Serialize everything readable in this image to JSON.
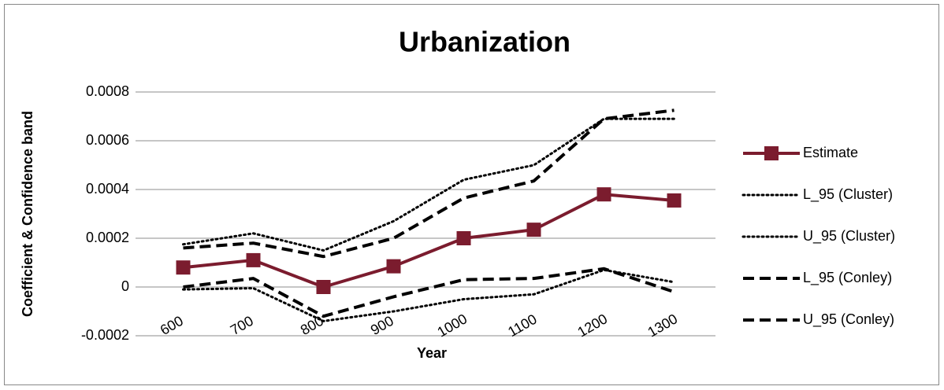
{
  "chart_data": {
    "type": "line",
    "title": "Urbanization",
    "x_label": "Year",
    "y_label": "Coefficient & Confidence band",
    "categories": [
      "600",
      "700",
      "800",
      "900",
      "1000",
      "1100",
      "1200",
      "1300"
    ],
    "ylim": [
      -0.0002,
      0.0008
    ],
    "yticks": [
      -0.0002,
      0,
      0.0002,
      0.0004,
      0.0006,
      0.0008
    ],
    "grid": true,
    "legend": "right",
    "series": [
      {
        "name": "Estimate",
        "color": "#7b1c2e",
        "line_style": "solid",
        "marker": "square",
        "values": [
          8e-05,
          0.00011,
          0,
          8.5e-05,
          0.0002,
          0.000235,
          0.00038,
          0.000355
        ]
      },
      {
        "name": "L_95 (Cluster)",
        "color": "#000000",
        "line_style": "dotted",
        "values": [
          -1e-05,
          -5e-06,
          -0.00014,
          -0.0001,
          -5e-05,
          -3e-05,
          7e-05,
          2e-05
        ]
      },
      {
        "name": "U_95 (Cluster)",
        "color": "#000000",
        "line_style": "dotted",
        "values": [
          0.000175,
          0.00022,
          0.00015,
          0.00027,
          0.00044,
          0.0005,
          0.00069,
          0.00069
        ]
      },
      {
        "name": "L_95 (Conley)",
        "color": "#000000",
        "line_style": "dashed",
        "values": [
          0,
          3.5e-05,
          -0.00012,
          -4e-05,
          3e-05,
          3.5e-05,
          7.5e-05,
          -2e-05
        ]
      },
      {
        "name": "U_95 (Conley)",
        "color": "#000000",
        "line_style": "dashed",
        "values": [
          0.00016,
          0.00018,
          0.000125,
          0.0002,
          0.000365,
          0.000435,
          0.00069,
          0.000725
        ]
      }
    ]
  }
}
